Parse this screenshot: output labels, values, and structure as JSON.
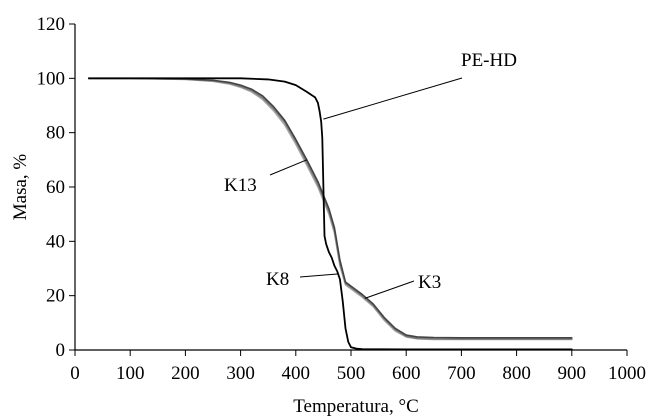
{
  "chart_data": {
    "type": "line",
    "xlabel": "Temperatura, °C",
    "ylabel": "Masa, %",
    "xlim": [
      0,
      1000
    ],
    "ylim": [
      0,
      120
    ],
    "xticks": [
      0,
      100,
      200,
      300,
      400,
      500,
      600,
      700,
      800,
      900,
      1000
    ],
    "yticks": [
      0,
      20,
      40,
      60,
      80,
      100,
      120
    ],
    "grid": false,
    "legend": "none",
    "series": [
      {
        "name": "PE-HD",
        "color": "#000000",
        "x": [
          25,
          100,
          200,
          300,
          350,
          380,
          400,
          420,
          435,
          440,
          443,
          446,
          448,
          450,
          452,
          455,
          460,
          465,
          470,
          475,
          480,
          485,
          490,
          495,
          500,
          510,
          520,
          600,
          900
        ],
        "y": [
          100,
          100,
          100,
          100,
          99.6,
          98.8,
          97.5,
          95,
          93,
          91,
          88,
          84,
          78,
          60,
          42,
          39,
          36,
          34,
          31,
          29,
          26,
          18,
          8,
          3,
          1,
          0.5,
          0.3,
          0.2,
          0.2
        ]
      },
      {
        "name": "K13",
        "color": "#444444",
        "x": [
          25,
          100,
          200,
          250,
          280,
          300,
          320,
          340,
          360,
          380,
          400,
          420,
          440,
          460,
          470,
          480,
          490,
          500,
          510,
          520,
          540,
          560,
          580,
          600,
          620,
          650,
          700,
          800,
          900
        ],
        "y": [
          100,
          100,
          99.8,
          99.3,
          98.5,
          97.5,
          96,
          93.5,
          89.5,
          84.5,
          77.5,
          70,
          62,
          52,
          45,
          33,
          25,
          23.5,
          22,
          20.5,
          17,
          12,
          8,
          5.5,
          4.8,
          4.6,
          4.5,
          4.5,
          4.5
        ]
      },
      {
        "name": "K8",
        "color": "#7a7a7a",
        "x": [
          25,
          100,
          200,
          250,
          280,
          300,
          320,
          340,
          360,
          380,
          400,
          420,
          440,
          460,
          470,
          480,
          490,
          500,
          510,
          520,
          540,
          560,
          580,
          600,
          620,
          650,
          700,
          800,
          900
        ],
        "y": [
          100,
          100,
          99.7,
          99.1,
          98.2,
          97,
          95.5,
          92.8,
          88.8,
          83.8,
          76.8,
          69,
          61,
          51,
          44,
          32,
          24.5,
          23,
          21.5,
          20,
          16.5,
          11.5,
          7.5,
          5,
          4.3,
          4.1,
          4,
          4,
          4
        ]
      },
      {
        "name": "K3",
        "color": "#a8a8a8",
        "x": [
          25,
          100,
          200,
          250,
          280,
          300,
          320,
          340,
          360,
          380,
          400,
          420,
          440,
          460,
          470,
          480,
          490,
          500,
          510,
          520,
          540,
          560,
          580,
          600,
          620,
          650,
          700,
          800,
          900
        ],
        "y": [
          100,
          100,
          99.6,
          98.9,
          97.9,
          96.7,
          95,
          92.2,
          88,
          82.8,
          75.8,
          68,
          60,
          50,
          43,
          31,
          24,
          22.5,
          21,
          19.5,
          16,
          11,
          7,
          4.8,
          4.1,
          3.9,
          3.9,
          3.9,
          3.9
        ]
      }
    ],
    "annotations": [
      {
        "text": "PE-HD",
        "points_to": [
          450,
          85
        ]
      },
      {
        "text": "K13",
        "points_to": [
          420,
          70
        ]
      },
      {
        "text": "K8",
        "points_to": [
          478,
          28
        ]
      },
      {
        "text": "K3",
        "points_to": [
          525,
          19
        ]
      }
    ]
  }
}
